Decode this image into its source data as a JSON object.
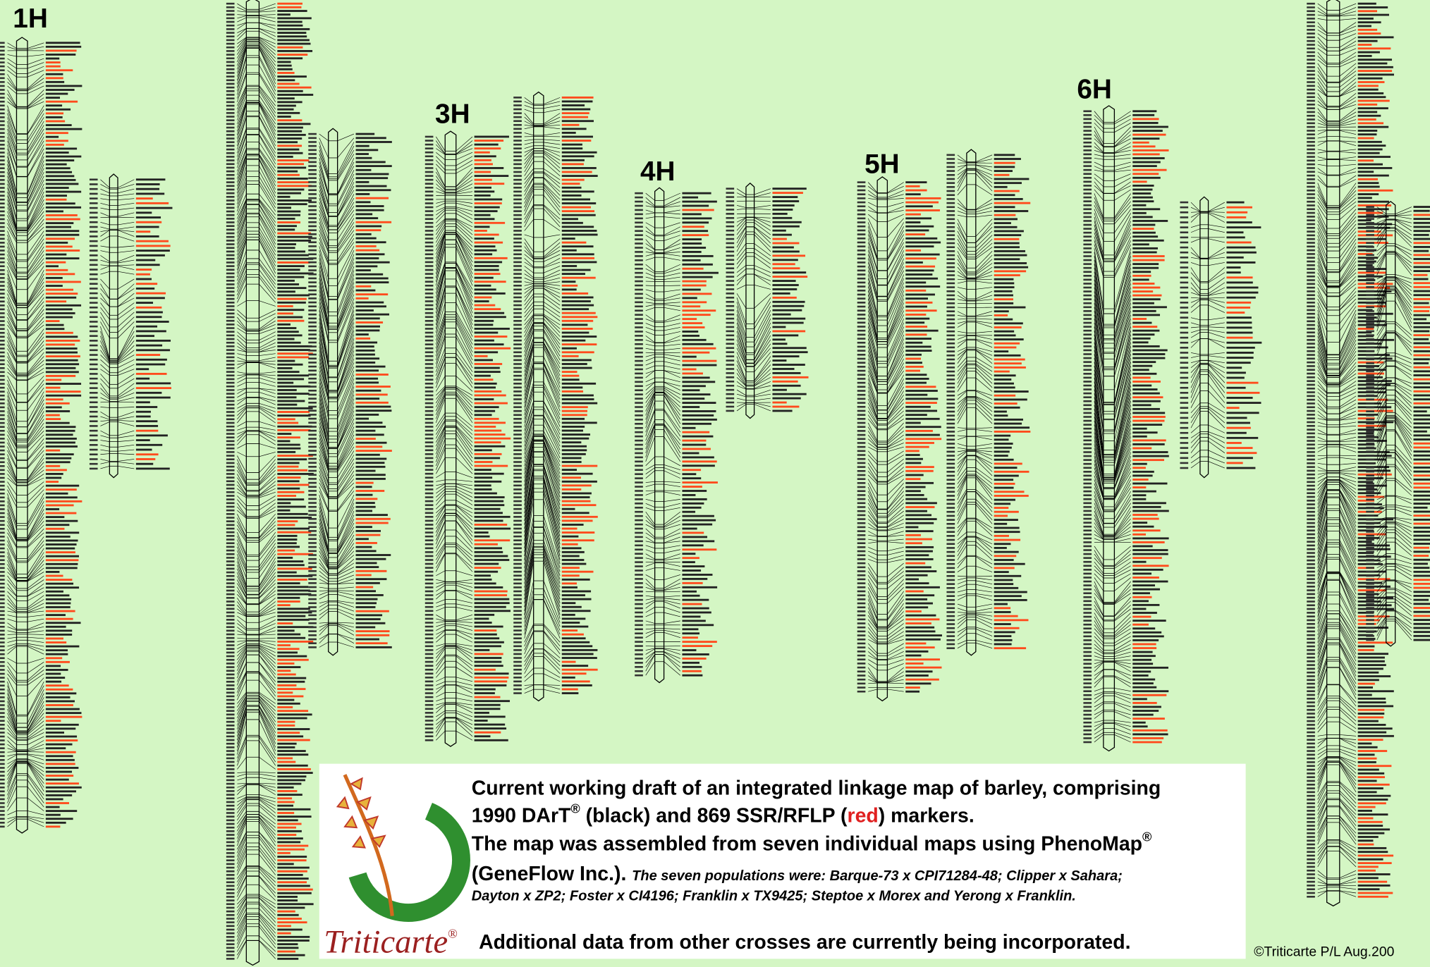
{
  "chromosome_labels": [
    "1H",
    "3H",
    "4H",
    "5H",
    "6H"
  ],
  "caption": {
    "line1": "Current working draft of an integrated linkage map of barley, comprising",
    "line2": [
      "1990 DArT",
      "®",
      " (black) and 869 SSR/RFLP (",
      "red",
      ") markers."
    ],
    "line3": [
      "The map was assembled from seven individual maps using PhenoMap",
      "®"
    ],
    "line4": "(GeneFlow Inc.).",
    "populations": [
      "The seven populations were: Barque-73 x CPI71284-48; Clipper x Sahara;",
      "Dayton x ZP2; Foster x CI4196; Franklin x TX9425; Steptoe x Morex and Yerong x Franklin."
    ],
    "additional": "Additional data from other crosses are currently being incorporated."
  },
  "logo": {
    "name": "Triticarte",
    "mark": "®"
  },
  "copyright": "©Triticarte P/L Aug.200"
}
